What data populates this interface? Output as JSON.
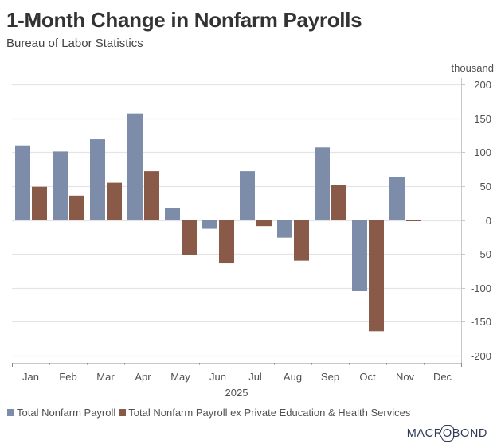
{
  "header": {
    "title": "1-Month Change in Nonfarm Payrolls",
    "subtitle": "Bureau of Labor Statistics"
  },
  "branding": {
    "logo_pre": "MACR",
    "logo_o": "O",
    "logo_post": "BOND"
  },
  "colors": {
    "series_total": "#7d8ca8",
    "series_ex": "#8a5a48",
    "grid": "#e4e4e4",
    "axis": "#c8c8c8",
    "text": "#505050"
  },
  "chart_data": {
    "type": "bar",
    "title": "1-Month Change in Nonfarm Payrolls",
    "subtitle": "Bureau of Labor Statistics",
    "xlabel": "2025",
    "ylabel": "thousand",
    "y_axis_side": "right",
    "ylim": [
      -200,
      200
    ],
    "yticks": [
      200,
      150,
      100,
      50,
      0,
      -50,
      -100,
      -150,
      -200
    ],
    "grid": true,
    "legend_position": "bottom-left",
    "categories": [
      "Jan",
      "Feb",
      "Mar",
      "Apr",
      "May",
      "Jun",
      "Jul",
      "Aug",
      "Sep",
      "Oct",
      "Nov",
      "Dec"
    ],
    "series": [
      {
        "name": "Total Nonfarm Payroll",
        "color": "#7d8ca8",
        "values": [
          110,
          101,
          119,
          157,
          18,
          -13,
          72,
          -26,
          107,
          -105,
          63,
          null
        ]
      },
      {
        "name": "Total Nonfarm Payroll ex Private Education & Health Services",
        "color": "#8a5a48",
        "values": [
          49,
          36,
          55,
          72,
          -52,
          -64,
          -9,
          -60,
          52,
          -164,
          -1,
          null
        ]
      }
    ]
  }
}
